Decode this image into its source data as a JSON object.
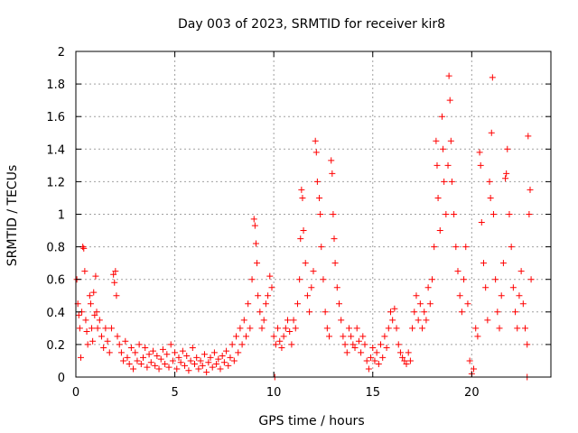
{
  "chart_data": {
    "type": "scatter",
    "title": "Day 003 of 2023, SRMTID for receiver kir8",
    "xlabel": "GPS time / hours",
    "ylabel": "SRMTID / TECUs",
    "xlim": [
      0,
      24
    ],
    "ylim": [
      0,
      2
    ],
    "x_ticks": [
      {
        "value": 0,
        "label": "0"
      },
      {
        "value": 5,
        "label": "5"
      },
      {
        "value": 10,
        "label": "10"
      },
      {
        "value": 15,
        "label": "15"
      },
      {
        "value": 20,
        "label": "20"
      }
    ],
    "y_ticks": [
      {
        "value": 0,
        "label": "0"
      },
      {
        "value": 0.2,
        "label": "0.2"
      },
      {
        "value": 0.4,
        "label": "0.4"
      },
      {
        "value": 0.6,
        "label": "0.6"
      },
      {
        "value": 0.8,
        "label": "0.8"
      },
      {
        "value": 1,
        "label": "1"
      },
      {
        "value": 1.2,
        "label": "1.2"
      },
      {
        "value": 1.4,
        "label": "1.4"
      },
      {
        "value": 1.6,
        "label": "1.6"
      },
      {
        "value": 1.8,
        "label": "1.8"
      },
      {
        "value": 2,
        "label": "2"
      }
    ],
    "grid": true,
    "marker": "+",
    "color": "#ff0000",
    "series": [
      {
        "name": "SRMTID",
        "points": [
          [
            0.05,
            0.6
          ],
          [
            0.1,
            0.45
          ],
          [
            0.15,
            0.38
          ],
          [
            0.2,
            0.3
          ],
          [
            0.25,
            0.12
          ],
          [
            0.3,
            0.4
          ],
          [
            0.35,
            0.8
          ],
          [
            0.4,
            0.79
          ],
          [
            0.45,
            0.65
          ],
          [
            0.5,
            0.35
          ],
          [
            0.55,
            0.28
          ],
          [
            0.6,
            0.2
          ],
          [
            0.7,
            0.5
          ],
          [
            0.75,
            0.45
          ],
          [
            0.8,
            0.3
          ],
          [
            0.85,
            0.22
          ],
          [
            0.9,
            0.52
          ],
          [
            0.95,
            0.38
          ],
          [
            1.0,
            0.62
          ],
          [
            1.05,
            0.4
          ],
          [
            1.1,
            0.3
          ],
          [
            1.2,
            0.35
          ],
          [
            1.3,
            0.25
          ],
          [
            1.4,
            0.18
          ],
          [
            1.5,
            0.3
          ],
          [
            1.6,
            0.22
          ],
          [
            1.7,
            0.15
          ],
          [
            1.8,
            0.3
          ],
          [
            1.9,
            0.63
          ],
          [
            1.95,
            0.58
          ],
          [
            2.0,
            0.65
          ],
          [
            2.05,
            0.5
          ],
          [
            2.1,
            0.25
          ],
          [
            2.2,
            0.2
          ],
          [
            2.3,
            0.15
          ],
          [
            2.4,
            0.1
          ],
          [
            2.5,
            0.22
          ],
          [
            2.6,
            0.12
          ],
          [
            2.7,
            0.08
          ],
          [
            2.8,
            0.18
          ],
          [
            2.9,
            0.05
          ],
          [
            3.0,
            0.15
          ],
          [
            3.1,
            0.1
          ],
          [
            3.2,
            0.2
          ],
          [
            3.3,
            0.08
          ],
          [
            3.4,
            0.12
          ],
          [
            3.5,
            0.18
          ],
          [
            3.6,
            0.06
          ],
          [
            3.7,
            0.14
          ],
          [
            3.8,
            0.09
          ],
          [
            3.9,
            0.16
          ],
          [
            4.0,
            0.07
          ],
          [
            4.1,
            0.13
          ],
          [
            4.2,
            0.05
          ],
          [
            4.3,
            0.11
          ],
          [
            4.4,
            0.17
          ],
          [
            4.5,
            0.08
          ],
          [
            4.6,
            0.14
          ],
          [
            4.7,
            0.06
          ],
          [
            4.8,
            0.2
          ],
          [
            4.9,
            0.1
          ],
          [
            5.0,
            0.15
          ],
          [
            5.1,
            0.05
          ],
          [
            5.2,
            0.12
          ],
          [
            5.3,
            0.09
          ],
          [
            5.4,
            0.16
          ],
          [
            5.5,
            0.07
          ],
          [
            5.6,
            0.13
          ],
          [
            5.7,
            0.04
          ],
          [
            5.8,
            0.1
          ],
          [
            5.9,
            0.18
          ],
          [
            6.0,
            0.08
          ],
          [
            6.1,
            0.12
          ],
          [
            6.2,
            0.05
          ],
          [
            6.3,
            0.1
          ],
          [
            6.4,
            0.07
          ],
          [
            6.5,
            0.14
          ],
          [
            6.6,
            0.03
          ],
          [
            6.7,
            0.09
          ],
          [
            6.8,
            0.12
          ],
          [
            6.9,
            0.06
          ],
          [
            7.0,
            0.15
          ],
          [
            7.1,
            0.08
          ],
          [
            7.2,
            0.11
          ],
          [
            7.3,
            0.05
          ],
          [
            7.4,
            0.13
          ],
          [
            7.5,
            0.09
          ],
          [
            7.6,
            0.16
          ],
          [
            7.7,
            0.07
          ],
          [
            7.8,
            0.12
          ],
          [
            7.9,
            0.2
          ],
          [
            8.0,
            0.1
          ],
          [
            8.1,
            0.25
          ],
          [
            8.2,
            0.15
          ],
          [
            8.3,
            0.3
          ],
          [
            8.4,
            0.2
          ],
          [
            8.5,
            0.35
          ],
          [
            8.6,
            0.25
          ],
          [
            8.7,
            0.45
          ],
          [
            8.8,
            0.3
          ],
          [
            8.9,
            0.6
          ],
          [
            9.0,
            0.97
          ],
          [
            9.05,
            0.93
          ],
          [
            9.1,
            0.82
          ],
          [
            9.15,
            0.7
          ],
          [
            9.2,
            0.5
          ],
          [
            9.3,
            0.4
          ],
          [
            9.4,
            0.3
          ],
          [
            9.5,
            0.35
          ],
          [
            9.6,
            0.45
          ],
          [
            9.7,
            0.5
          ],
          [
            9.8,
            0.62
          ],
          [
            9.9,
            0.55
          ],
          [
            10.0,
            0.25
          ],
          [
            10.05,
            0.0
          ],
          [
            10.1,
            0.2
          ],
          [
            10.2,
            0.3
          ],
          [
            10.3,
            0.22
          ],
          [
            10.4,
            0.18
          ],
          [
            10.5,
            0.25
          ],
          [
            10.6,
            0.3
          ],
          [
            10.7,
            0.35
          ],
          [
            10.8,
            0.28
          ],
          [
            10.9,
            0.2
          ],
          [
            11.0,
            0.35
          ],
          [
            11.1,
            0.3
          ],
          [
            11.2,
            0.45
          ],
          [
            11.3,
            0.6
          ],
          [
            11.35,
            0.85
          ],
          [
            11.4,
            1.15
          ],
          [
            11.45,
            1.1
          ],
          [
            11.5,
            0.9
          ],
          [
            11.6,
            0.7
          ],
          [
            11.7,
            0.5
          ],
          [
            11.8,
            0.4
          ],
          [
            11.9,
            0.55
          ],
          [
            12.0,
            0.65
          ],
          [
            12.1,
            1.45
          ],
          [
            12.15,
            1.38
          ],
          [
            12.2,
            1.2
          ],
          [
            12.3,
            1.1
          ],
          [
            12.35,
            1.0
          ],
          [
            12.4,
            0.8
          ],
          [
            12.5,
            0.6
          ],
          [
            12.6,
            0.4
          ],
          [
            12.7,
            0.3
          ],
          [
            12.8,
            0.25
          ],
          [
            12.9,
            1.33
          ],
          [
            12.95,
            1.25
          ],
          [
            13.0,
            1.0
          ],
          [
            13.05,
            0.85
          ],
          [
            13.1,
            0.7
          ],
          [
            13.2,
            0.55
          ],
          [
            13.3,
            0.45
          ],
          [
            13.4,
            0.35
          ],
          [
            13.5,
            0.25
          ],
          [
            13.6,
            0.2
          ],
          [
            13.7,
            0.15
          ],
          [
            13.8,
            0.3
          ],
          [
            13.9,
            0.25
          ],
          [
            14.0,
            0.2
          ],
          [
            14.1,
            0.18
          ],
          [
            14.2,
            0.3
          ],
          [
            14.3,
            0.22
          ],
          [
            14.4,
            0.15
          ],
          [
            14.5,
            0.25
          ],
          [
            14.6,
            0.2
          ],
          [
            14.7,
            0.1
          ],
          [
            14.8,
            0.05
          ],
          [
            14.9,
            0.12
          ],
          [
            15.0,
            0.18
          ],
          [
            15.1,
            0.1
          ],
          [
            15.2,
            0.15
          ],
          [
            15.3,
            0.08
          ],
          [
            15.4,
            0.2
          ],
          [
            15.5,
            0.12
          ],
          [
            15.6,
            0.25
          ],
          [
            15.7,
            0.18
          ],
          [
            15.8,
            0.3
          ],
          [
            15.9,
            0.4
          ],
          [
            16.0,
            0.35
          ],
          [
            16.1,
            0.42
          ],
          [
            16.2,
            0.3
          ],
          [
            16.3,
            0.2
          ],
          [
            16.4,
            0.15
          ],
          [
            16.5,
            0.12
          ],
          [
            16.6,
            0.1
          ],
          [
            16.7,
            0.08
          ],
          [
            16.8,
            0.15
          ],
          [
            16.9,
            0.1
          ],
          [
            17.0,
            0.3
          ],
          [
            17.1,
            0.4
          ],
          [
            17.2,
            0.5
          ],
          [
            17.3,
            0.35
          ],
          [
            17.4,
            0.45
          ],
          [
            17.5,
            0.3
          ],
          [
            17.6,
            0.4
          ],
          [
            17.7,
            0.35
          ],
          [
            17.8,
            0.55
          ],
          [
            17.9,
            0.45
          ],
          [
            18.0,
            0.6
          ],
          [
            18.1,
            0.8
          ],
          [
            18.2,
            1.45
          ],
          [
            18.25,
            1.3
          ],
          [
            18.3,
            1.1
          ],
          [
            18.4,
            0.9
          ],
          [
            18.5,
            1.6
          ],
          [
            18.55,
            1.4
          ],
          [
            18.6,
            1.2
          ],
          [
            18.7,
            1.0
          ],
          [
            18.8,
            1.3
          ],
          [
            18.85,
            1.85
          ],
          [
            18.9,
            1.7
          ],
          [
            18.95,
            1.45
          ],
          [
            19.0,
            1.2
          ],
          [
            19.1,
            1.0
          ],
          [
            19.2,
            0.8
          ],
          [
            19.3,
            0.65
          ],
          [
            19.4,
            0.5
          ],
          [
            19.5,
            0.4
          ],
          [
            19.6,
            0.6
          ],
          [
            19.7,
            0.8
          ],
          [
            19.8,
            0.45
          ],
          [
            19.9,
            0.1
          ],
          [
            20.0,
            0.02
          ],
          [
            20.1,
            0.05
          ],
          [
            20.2,
            0.3
          ],
          [
            20.3,
            0.25
          ],
          [
            20.4,
            1.38
          ],
          [
            20.45,
            1.3
          ],
          [
            20.5,
            0.95
          ],
          [
            20.6,
            0.7
          ],
          [
            20.7,
            0.55
          ],
          [
            20.8,
            0.35
          ],
          [
            20.9,
            1.2
          ],
          [
            20.95,
            1.1
          ],
          [
            21.0,
            1.5
          ],
          [
            21.05,
            1.84
          ],
          [
            21.1,
            1.0
          ],
          [
            21.2,
            0.6
          ],
          [
            21.3,
            0.4
          ],
          [
            21.4,
            0.3
          ],
          [
            21.5,
            0.5
          ],
          [
            21.6,
            0.7
          ],
          [
            21.7,
            1.22
          ],
          [
            21.75,
            1.25
          ],
          [
            21.8,
            1.4
          ],
          [
            21.9,
            1.0
          ],
          [
            22.0,
            0.8
          ],
          [
            22.1,
            0.55
          ],
          [
            22.2,
            0.4
          ],
          [
            22.3,
            0.3
          ],
          [
            22.4,
            0.5
          ],
          [
            22.5,
            0.65
          ],
          [
            22.6,
            0.45
          ],
          [
            22.7,
            0.3
          ],
          [
            22.8,
            0.2
          ],
          [
            22.85,
            1.48
          ],
          [
            22.9,
            1.0
          ],
          [
            22.95,
            1.15
          ],
          [
            23.0,
            0.6
          ],
          [
            22.8,
            0.0
          ]
        ]
      }
    ]
  }
}
